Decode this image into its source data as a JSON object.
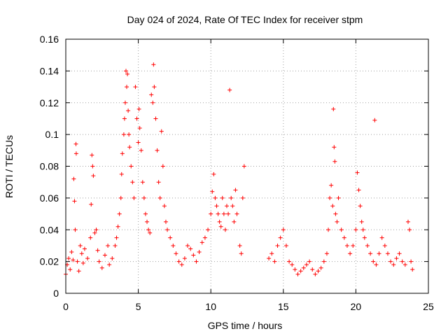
{
  "chart_data": {
    "type": "scatter",
    "title": "Day 024 of 2024, Rate Of TEC Index for receiver stpm",
    "xlabel": "GPS time / hours",
    "ylabel": "ROTI / TECUs",
    "xlim": [
      0,
      25
    ],
    "ylim": [
      0,
      0.16
    ],
    "x_ticks": [
      0,
      5,
      10,
      15,
      20,
      25
    ],
    "x_tick_labels": [
      "0",
      "5",
      "10",
      "15",
      "20",
      "25"
    ],
    "y_ticks": [
      0,
      0.02,
      0.04,
      0.06,
      0.08,
      0.1,
      0.12,
      0.14,
      0.16
    ],
    "y_tick_labels": [
      "0",
      "0.02",
      "0.04",
      "0.06",
      "0.08",
      "0.1",
      "0.12",
      "0.14",
      "0.16"
    ],
    "grid": true,
    "marker": "+",
    "series": [
      {
        "name": "ROTI",
        "color": "#ff0000",
        "points": [
          [
            0.0,
            0.012
          ],
          [
            0.1,
            0.018
          ],
          [
            0.2,
            0.022
          ],
          [
            0.3,
            0.015
          ],
          [
            0.4,
            0.026
          ],
          [
            0.5,
            0.021
          ],
          [
            0.55,
            0.072
          ],
          [
            0.6,
            0.058
          ],
          [
            0.65,
            0.04
          ],
          [
            0.7,
            0.094
          ],
          [
            0.72,
            0.088
          ],
          [
            0.8,
            0.02
          ],
          [
            0.9,
            0.014
          ],
          [
            1.0,
            0.03
          ],
          [
            1.1,
            0.025
          ],
          [
            1.2,
            0.019
          ],
          [
            1.3,
            0.028
          ],
          [
            1.5,
            0.022
          ],
          [
            1.7,
            0.035
          ],
          [
            1.75,
            0.056
          ],
          [
            1.8,
            0.087
          ],
          [
            1.85,
            0.08
          ],
          [
            1.9,
            0.074
          ],
          [
            2.0,
            0.038
          ],
          [
            2.1,
            0.04
          ],
          [
            2.2,
            0.027
          ],
          [
            2.3,
            0.02
          ],
          [
            2.5,
            0.016
          ],
          [
            2.7,
            0.024
          ],
          [
            2.9,
            0.03
          ],
          [
            3.0,
            0.018
          ],
          [
            3.2,
            0.022
          ],
          [
            3.4,
            0.03
          ],
          [
            3.5,
            0.035
          ],
          [
            3.6,
            0.042
          ],
          [
            3.7,
            0.05
          ],
          [
            3.8,
            0.06
          ],
          [
            3.85,
            0.075
          ],
          [
            3.9,
            0.088
          ],
          [
            4.0,
            0.1
          ],
          [
            4.05,
            0.11
          ],
          [
            4.1,
            0.12
          ],
          [
            4.15,
            0.14
          ],
          [
            4.2,
            0.13
          ],
          [
            4.25,
            0.138
          ],
          [
            4.3,
            0.115
          ],
          [
            4.35,
            0.1
          ],
          [
            4.4,
            0.092
          ],
          [
            4.5,
            0.08
          ],
          [
            4.6,
            0.07
          ],
          [
            4.7,
            0.06
          ],
          [
            4.8,
            0.13
          ],
          [
            4.9,
            0.11
          ],
          [
            5.0,
            0.095
          ],
          [
            5.05,
            0.116
          ],
          [
            5.1,
            0.104
          ],
          [
            5.2,
            0.09
          ],
          [
            5.3,
            0.07
          ],
          [
            5.4,
            0.06
          ],
          [
            5.5,
            0.05
          ],
          [
            5.6,
            0.045
          ],
          [
            5.7,
            0.04
          ],
          [
            5.8,
            0.038
          ],
          [
            5.9,
            0.125
          ],
          [
            6.0,
            0.12
          ],
          [
            6.05,
            0.144
          ],
          [
            6.1,
            0.13
          ],
          [
            6.2,
            0.11
          ],
          [
            6.3,
            0.09
          ],
          [
            6.4,
            0.07
          ],
          [
            6.5,
            0.06
          ],
          [
            6.6,
            0.102
          ],
          [
            6.7,
            0.08
          ],
          [
            6.8,
            0.055
          ],
          [
            6.9,
            0.045
          ],
          [
            7.0,
            0.04
          ],
          [
            7.2,
            0.035
          ],
          [
            7.4,
            0.03
          ],
          [
            7.6,
            0.025
          ],
          [
            7.8,
            0.02
          ],
          [
            8.0,
            0.018
          ],
          [
            8.2,
            0.022
          ],
          [
            8.4,
            0.03
          ],
          [
            8.6,
            0.028
          ],
          [
            8.8,
            0.024
          ],
          [
            9.0,
            0.02
          ],
          [
            9.2,
            0.026
          ],
          [
            9.4,
            0.032
          ],
          [
            9.6,
            0.035
          ],
          [
            9.8,
            0.04
          ],
          [
            10.0,
            0.05
          ],
          [
            10.1,
            0.064
          ],
          [
            10.2,
            0.075
          ],
          [
            10.3,
            0.06
          ],
          [
            10.4,
            0.055
          ],
          [
            10.5,
            0.05
          ],
          [
            10.6,
            0.045
          ],
          [
            10.7,
            0.042
          ],
          [
            10.8,
            0.06
          ],
          [
            10.9,
            0.05
          ],
          [
            11.0,
            0.04
          ],
          [
            11.1,
            0.055
          ],
          [
            11.2,
            0.05
          ],
          [
            11.3,
            0.128
          ],
          [
            11.4,
            0.06
          ],
          [
            11.5,
            0.055
          ],
          [
            11.6,
            0.045
          ],
          [
            11.7,
            0.065
          ],
          [
            11.8,
            0.05
          ],
          [
            12.0,
            0.03
          ],
          [
            12.1,
            0.025
          ],
          [
            12.2,
            0.06
          ],
          [
            12.3,
            0.08
          ],
          [
            14.0,
            0.022
          ],
          [
            14.2,
            0.025
          ],
          [
            14.4,
            0.02
          ],
          [
            14.6,
            0.03
          ],
          [
            14.8,
            0.035
          ],
          [
            15.0,
            0.04
          ],
          [
            15.2,
            0.03
          ],
          [
            15.4,
            0.02
          ],
          [
            15.6,
            0.018
          ],
          [
            15.8,
            0.015
          ],
          [
            16.0,
            0.012
          ],
          [
            16.2,
            0.014
          ],
          [
            16.4,
            0.016
          ],
          [
            16.6,
            0.018
          ],
          [
            16.8,
            0.02
          ],
          [
            17.0,
            0.015
          ],
          [
            17.2,
            0.012
          ],
          [
            17.4,
            0.014
          ],
          [
            17.6,
            0.016
          ],
          [
            17.8,
            0.02
          ],
          [
            18.0,
            0.025
          ],
          [
            18.1,
            0.04
          ],
          [
            18.2,
            0.06
          ],
          [
            18.3,
            0.068
          ],
          [
            18.4,
            0.055
          ],
          [
            18.45,
            0.116
          ],
          [
            18.5,
            0.092
          ],
          [
            18.55,
            0.083
          ],
          [
            18.6,
            0.05
          ],
          [
            18.7,
            0.045
          ],
          [
            18.8,
            0.06
          ],
          [
            19.0,
            0.04
          ],
          [
            19.2,
            0.035
          ],
          [
            19.4,
            0.03
          ],
          [
            19.6,
            0.025
          ],
          [
            19.8,
            0.03
          ],
          [
            20.0,
            0.04
          ],
          [
            20.1,
            0.076
          ],
          [
            20.2,
            0.065
          ],
          [
            20.3,
            0.055
          ],
          [
            20.4,
            0.045
          ],
          [
            20.5,
            0.04
          ],
          [
            20.6,
            0.035
          ],
          [
            20.8,
            0.03
          ],
          [
            21.0,
            0.025
          ],
          [
            21.2,
            0.02
          ],
          [
            21.3,
            0.109
          ],
          [
            21.4,
            0.018
          ],
          [
            21.6,
            0.025
          ],
          [
            21.8,
            0.035
          ],
          [
            22.0,
            0.03
          ],
          [
            22.2,
            0.025
          ],
          [
            22.4,
            0.02
          ],
          [
            22.6,
            0.018
          ],
          [
            22.8,
            0.022
          ],
          [
            23.0,
            0.025
          ],
          [
            23.2,
            0.02
          ],
          [
            23.4,
            0.018
          ],
          [
            23.6,
            0.045
          ],
          [
            23.7,
            0.04
          ],
          [
            23.8,
            0.02
          ],
          [
            23.9,
            0.015
          ]
        ]
      }
    ]
  }
}
